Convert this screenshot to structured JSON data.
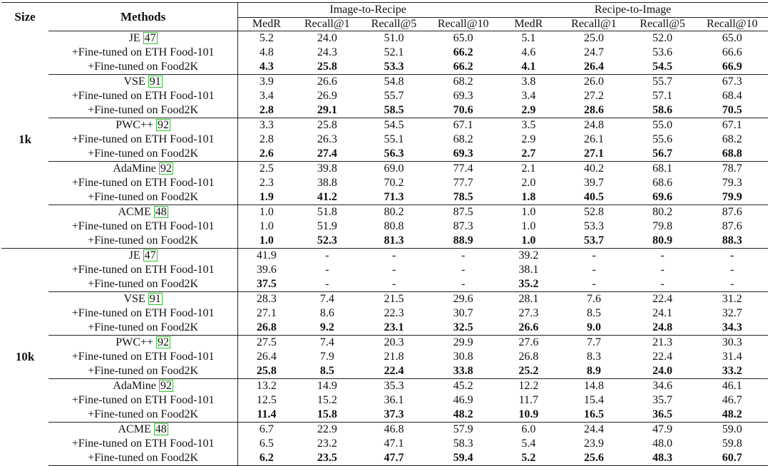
{
  "table": {
    "header": {
      "size": "Size",
      "methods": "Methods",
      "groups": [
        "Image-to-Recipe",
        "Recipe-to-Image"
      ],
      "columns": [
        "MedR",
        "Recall@1",
        "Recall@5",
        "Recall@10",
        "MedR",
        "Recall@1",
        "Recall@5",
        "Recall@10"
      ]
    },
    "sections": [
      {
        "size": "1k",
        "blocks": [
          {
            "rows": [
              {
                "method": "JE",
                "ref": "47",
                "cells": [
                  "5.2",
                  "24.0",
                  "51.0",
                  "65.0",
                  "5.1",
                  "25.0",
                  "52.0",
                  "65.0"
                ]
              },
              {
                "method": "+Fine-tuned on ETH Food-101",
                "cells": [
                  "4.8",
                  "24.3",
                  "52.1",
                  "66.2",
                  "4.6",
                  "24.7",
                  "53.6",
                  "66.6"
                ],
                "bold": [
                  3
                ]
              },
              {
                "method": "+Fine-tuned on Food2K",
                "cells": [
                  "4.3",
                  "25.8",
                  "53.3",
                  "66.2",
                  "4.1",
                  "26.4",
                  "54.5",
                  "66.9"
                ],
                "bold": [
                  0,
                  1,
                  2,
                  3,
                  4,
                  5,
                  6,
                  7
                ]
              }
            ]
          },
          {
            "rows": [
              {
                "method": "VSE",
                "ref": "91",
                "cells": [
                  "3.9",
                  "26.6",
                  "54.8",
                  "68.2",
                  "3.8",
                  "26.0",
                  "55.7",
                  "67.3"
                ]
              },
              {
                "method": "+Fine-tuned on ETH Food-101",
                "cells": [
                  "3.4",
                  "26.9",
                  "55.7",
                  "69.3",
                  "3.4",
                  "27.2",
                  "57.1",
                  "68.4"
                ]
              },
              {
                "method": "+Fine-tuned on Food2K",
                "cells": [
                  "2.8",
                  "29.1",
                  "58.5",
                  "70.6",
                  "2.9",
                  "28.6",
                  "58.6",
                  "70.5"
                ],
                "bold": [
                  0,
                  1,
                  2,
                  3,
                  4,
                  5,
                  6,
                  7
                ]
              }
            ]
          },
          {
            "rows": [
              {
                "method": "PWC++",
                "ref": "92",
                "cells": [
                  "3.3",
                  "25.8",
                  "54.5",
                  "67.1",
                  "3.5",
                  "24.8",
                  "55.0",
                  "67.1"
                ]
              },
              {
                "method": "+Fine-tuned on ETH Food-101",
                "cells": [
                  "2.8",
                  "26.3",
                  "55.1",
                  "68.2",
                  "2.9",
                  "26.1",
                  "55.6",
                  "68.2"
                ]
              },
              {
                "method": "+Fine-tuned on Food2K",
                "cells": [
                  "2.6",
                  "27.4",
                  "56.3",
                  "69.3",
                  "2.7",
                  "27.1",
                  "56.7",
                  "68.8"
                ],
                "bold": [
                  0,
                  1,
                  2,
                  3,
                  4,
                  5,
                  6,
                  7
                ]
              }
            ]
          },
          {
            "rows": [
              {
                "method": "AdaMine",
                "ref": "92",
                "cells": [
                  "2.5",
                  "39.8",
                  "69.0",
                  "77.4",
                  "2.1",
                  "40.2",
                  "68.1",
                  "78.7"
                ]
              },
              {
                "method": "+Fine-tuned on ETH Food-101",
                "cells": [
                  "2.3",
                  "38.8",
                  "70.2",
                  "77.7",
                  "2.0",
                  "39.7",
                  "68.6",
                  "79.3"
                ]
              },
              {
                "method": "+Fine-tuned on Food2K",
                "cells": [
                  "1.9",
                  "41.2",
                  "71.3",
                  "78.5",
                  "1.8",
                  "40.5",
                  "69.6",
                  "79.9"
                ],
                "bold": [
                  0,
                  1,
                  2,
                  3,
                  4,
                  5,
                  6,
                  7
                ]
              }
            ]
          },
          {
            "rows": [
              {
                "method": "ACME",
                "ref": "48",
                "cells": [
                  "1.0",
                  "51.8",
                  "80.2",
                  "87.5",
                  "1.0",
                  "52.8",
                  "80.2",
                  "87.6"
                ]
              },
              {
                "method": "+Fine-tuned on ETH Food-101",
                "cells": [
                  "1.0",
                  "51.9",
                  "80.8",
                  "87.3",
                  "1.0",
                  "53.3",
                  "79.8",
                  "87.6"
                ]
              },
              {
                "method": "+Fine-tuned on Food2K",
                "cells": [
                  "1.0",
                  "52.3",
                  "81.3",
                  "88.9",
                  "1.0",
                  "53.7",
                  "80.9",
                  "88.3"
                ],
                "bold": [
                  0,
                  1,
                  2,
                  3,
                  4,
                  5,
                  6,
                  7
                ]
              }
            ]
          }
        ]
      },
      {
        "size": "10k",
        "blocks": [
          {
            "rows": [
              {
                "method": "JE",
                "ref": "47",
                "cells": [
                  "41.9",
                  "-",
                  "-",
                  "-",
                  "39.2",
                  "-",
                  "-",
                  "-"
                ]
              },
              {
                "method": "+Fine-tuned on ETH Food-101",
                "cells": [
                  "39.6",
                  "-",
                  "-",
                  "-",
                  "38.1",
                  "-",
                  "-",
                  "-"
                ]
              },
              {
                "method": "+Fine-tuned on Food2K",
                "cells": [
                  "37.5",
                  "-",
                  "-",
                  "-",
                  "35.2",
                  "-",
                  "-",
                  "-"
                ],
                "bold": [
                  0,
                  4
                ]
              }
            ]
          },
          {
            "rows": [
              {
                "method": "VSE",
                "ref": "91",
                "cells": [
                  "28.3",
                  "7.4",
                  "21.5",
                  "29.6",
                  "28.1",
                  "7.6",
                  "22.4",
                  "31.2"
                ]
              },
              {
                "method": "+Fine-tuned on ETH Food-101",
                "cells": [
                  "27.1",
                  "8.6",
                  "22.3",
                  "30.7",
                  "27.3",
                  "8.5",
                  "24.1",
                  "32.7"
                ]
              },
              {
                "method": "+Fine-tuned on Food2K",
                "cells": [
                  "26.8",
                  "9.2",
                  "23.1",
                  "32.5",
                  "26.6",
                  "9.0",
                  "24.8",
                  "34.3"
                ],
                "bold": [
                  0,
                  1,
                  2,
                  3,
                  4,
                  5,
                  6,
                  7
                ]
              }
            ]
          },
          {
            "rows": [
              {
                "method": "PWC++",
                "ref": "92",
                "cells": [
                  "27.5",
                  "7.4",
                  "20.3",
                  "29.9",
                  "27.6",
                  "7.7",
                  "21.3",
                  "30.3"
                ]
              },
              {
                "method": "+Fine-tuned on ETH Food-101",
                "cells": [
                  "26.4",
                  "7.9",
                  "21.8",
                  "30.8",
                  "26.8",
                  "8.3",
                  "22.4",
                  "31.4"
                ]
              },
              {
                "method": "+Fine-tuned on Food2K",
                "cells": [
                  "25.8",
                  "8.5",
                  "22.4",
                  "33.8",
                  "25.2",
                  "8.9",
                  "24.0",
                  "33.2"
                ],
                "bold": [
                  0,
                  1,
                  2,
                  3,
                  4,
                  5,
                  6,
                  7
                ]
              }
            ]
          },
          {
            "rows": [
              {
                "method": "AdaMine",
                "ref": "92",
                "cells": [
                  "13.2",
                  "14.9",
                  "35.3",
                  "45.2",
                  "12.2",
                  "14.8",
                  "34.6",
                  "46.1"
                ]
              },
              {
                "method": "+Fine-tuned on ETH Food-101",
                "cells": [
                  "12.5",
                  "15.2",
                  "36.1",
                  "46.9",
                  "11.7",
                  "15.4",
                  "35.7",
                  "46.7"
                ]
              },
              {
                "method": "+Fine-tuned on Food2K",
                "cells": [
                  "11.4",
                  "15.8",
                  "37.3",
                  "48.2",
                  "10.9",
                  "16.5",
                  "36.5",
                  "48.2"
                ],
                "bold": [
                  0,
                  1,
                  2,
                  3,
                  4,
                  5,
                  6,
                  7
                ]
              }
            ]
          },
          {
            "rows": [
              {
                "method": "ACME",
                "ref": "48",
                "cells": [
                  "6.7",
                  "22.9",
                  "46.8",
                  "57.9",
                  "6.0",
                  "24.4",
                  "47.9",
                  "59.0"
                ]
              },
              {
                "method": "+Fine-tuned on ETH Food-101",
                "cells": [
                  "6.5",
                  "23.2",
                  "47.1",
                  "58.3",
                  "5.4",
                  "23.9",
                  "48.0",
                  "59.8"
                ]
              },
              {
                "method": "+Fine-tuned on Food2K",
                "cells": [
                  "6.2",
                  "23.5",
                  "47.7",
                  "59.4",
                  "5.2",
                  "25.6",
                  "48.3",
                  "60.7"
                ],
                "bold": [
                  0,
                  1,
                  2,
                  3,
                  4,
                  5,
                  6,
                  7
                ]
              }
            ]
          }
        ]
      }
    ]
  }
}
